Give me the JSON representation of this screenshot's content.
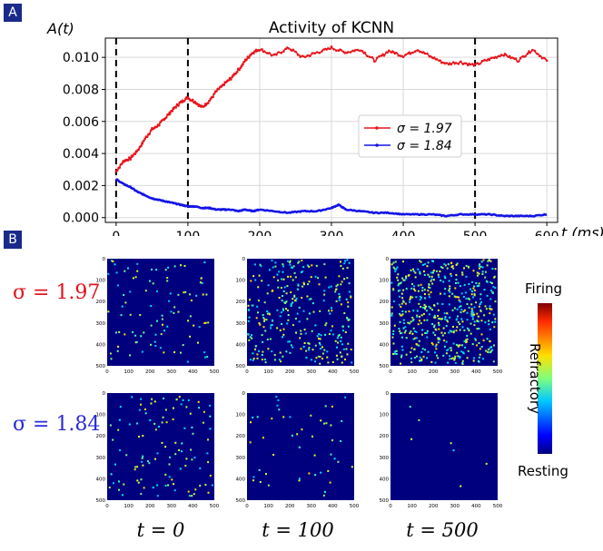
{
  "panels": {
    "a": "A",
    "b": "B"
  },
  "chart_data": {
    "type": "line",
    "title": "Activity of KCNN",
    "xlabel": "t (ms)",
    "ylabel": "A(t)",
    "xlim": [
      -15,
      615
    ],
    "ylim": [
      -0.0003,
      0.0112
    ],
    "xticks": [
      0,
      100,
      200,
      300,
      400,
      500,
      600
    ],
    "yticks": [
      0.0,
      0.002,
      0.004,
      0.006,
      0.008,
      0.01
    ],
    "ytick_labels": [
      "0.000",
      "0.002",
      "0.004",
      "0.006",
      "0.008",
      "0.010"
    ],
    "vlines": [
      0,
      100,
      500
    ],
    "grid": true,
    "legend_position": "center-right",
    "series": [
      {
        "name": "σ = 1.97",
        "color": "#e8161e",
        "x": [
          0,
          10,
          20,
          30,
          40,
          50,
          60,
          70,
          80,
          90,
          100,
          110,
          120,
          130,
          140,
          150,
          160,
          170,
          180,
          190,
          200,
          220,
          240,
          260,
          280,
          300,
          320,
          340,
          360,
          380,
          400,
          420,
          440,
          460,
          480,
          500,
          520,
          540,
          560,
          580,
          600
        ],
        "y": [
          0.0029,
          0.0035,
          0.0037,
          0.0042,
          0.0049,
          0.0055,
          0.0058,
          0.0063,
          0.0068,
          0.0072,
          0.0075,
          0.0072,
          0.0069,
          0.0073,
          0.0079,
          0.0083,
          0.0087,
          0.0092,
          0.0098,
          0.0103,
          0.0105,
          0.0101,
          0.0106,
          0.01,
          0.0103,
          0.0106,
          0.0103,
          0.0105,
          0.0098,
          0.0104,
          0.0101,
          0.0105,
          0.01,
          0.0096,
          0.0097,
          0.0095,
          0.0099,
          0.0102,
          0.0098,
          0.0105,
          0.0098
        ]
      },
      {
        "name": "σ = 1.84",
        "color": "#1414e6",
        "x": [
          0,
          10,
          20,
          30,
          40,
          50,
          60,
          70,
          80,
          90,
          100,
          110,
          120,
          130,
          140,
          150,
          160,
          170,
          180,
          190,
          200,
          220,
          240,
          260,
          280,
          300,
          310,
          320,
          340,
          360,
          380,
          400,
          420,
          440,
          460,
          480,
          500,
          520,
          540,
          560,
          580,
          600
        ],
        "y": [
          0.0024,
          0.0021,
          0.0019,
          0.0016,
          0.0014,
          0.0012,
          0.0011,
          0.001,
          0.0009,
          0.0008,
          0.0007,
          0.0007,
          0.0006,
          0.0006,
          0.0005,
          0.0005,
          0.0005,
          0.0004,
          0.0005,
          0.0004,
          0.0005,
          0.0004,
          0.0003,
          0.0004,
          0.0004,
          0.0006,
          0.0008,
          0.0005,
          0.0004,
          0.0003,
          0.0003,
          0.0002,
          0.0002,
          0.0002,
          0.0001,
          0.0002,
          0.0002,
          0.0002,
          0.0001,
          0.0001,
          0.0001,
          0.0002
        ]
      }
    ]
  },
  "heatmaps": {
    "axis_ticks": [
      "0",
      "100",
      "200",
      "300",
      "400",
      "500"
    ],
    "row_labels": [
      "σ = 1.97",
      "σ = 1.84"
    ],
    "col_labels": [
      "t = 0",
      "t = 100",
      "t = 500"
    ],
    "densities": [
      [
        0.07,
        0.22,
        0.38
      ],
      [
        0.08,
        0.035,
        0.005
      ]
    ],
    "colorbar": {
      "top": "Firing",
      "middle": "Refractory",
      "bottom": "Resting"
    }
  }
}
